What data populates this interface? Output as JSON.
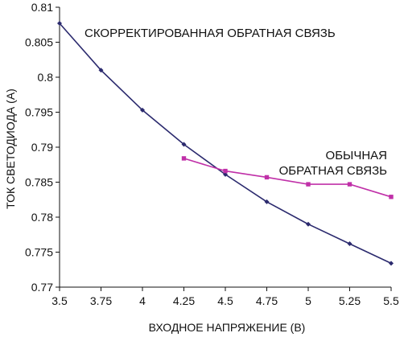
{
  "chart_data": {
    "type": "line",
    "xlabel": "ВХОДНОЕ НАПРЯЖЕНИЕ (В)",
    "ylabel": "ТОК СВЕТОДИОДА (А)",
    "xlim": [
      3.5,
      5.5
    ],
    "ylim": [
      0.77,
      0.81
    ],
    "x_ticks": [
      3.5,
      3.75,
      4,
      4.25,
      4.5,
      4.75,
      5,
      5.25,
      5.5
    ],
    "x_tick_labels": [
      "3.5",
      "3.75",
      "4",
      "4.25",
      "4.5",
      "4.75",
      "5",
      "5.25",
      "5.5"
    ],
    "y_ticks": [
      0.77,
      0.775,
      0.78,
      0.785,
      0.79,
      0.795,
      0.8,
      0.805,
      0.81
    ],
    "y_tick_labels": [
      "0.77",
      "0.775",
      "0.78",
      "0.785",
      "0.79",
      "0.795",
      "0.8",
      "0.805",
      "0.81"
    ],
    "grid": false,
    "legend": "none",
    "series": [
      {
        "color": "#2b2a6e",
        "marker": "diamond",
        "x": [
          3.5,
          3.75,
          4,
          4.25,
          4.5,
          4.75,
          5,
          5.25,
          5.5
        ],
        "y": [
          0.8077,
          0.801,
          0.7953,
          0.7904,
          0.7861,
          0.7822,
          0.779,
          0.7762,
          0.7734
        ]
      },
      {
        "color": "#c030a8",
        "marker": "square",
        "x": [
          4.25,
          4.5,
          4.75,
          5,
          5.25,
          5.5
        ],
        "y": [
          0.7884,
          0.7866,
          0.7857,
          0.7847,
          0.7847,
          0.7829
        ]
      }
    ],
    "annotations": [
      {
        "text": "СКОРРЕКТИРОВАННАЯ ОБРАТНАЯ СВЯЗЬ"
      },
      {
        "text": "ОБЫЧНАЯ"
      },
      {
        "text": "ОБРАТНАЯ СВЯЗЬ"
      }
    ]
  }
}
